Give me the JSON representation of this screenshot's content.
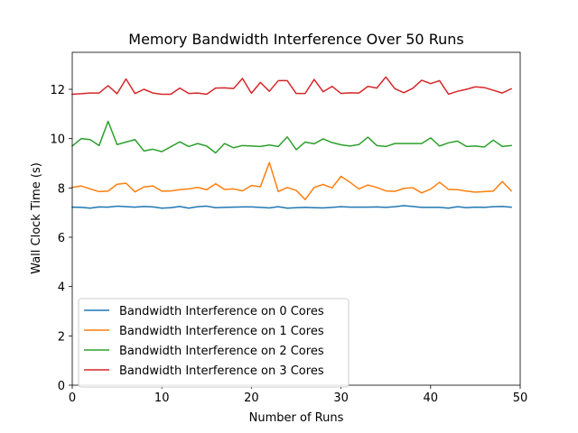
{
  "chart_data": {
    "type": "line",
    "title": "Memory Bandwidth Interference Over 50 Runs",
    "xlabel": "Number of Runs",
    "ylabel": "Wall Clock Time (s)",
    "xlim": [
      0,
      50
    ],
    "ylim": [
      0,
      13.5
    ],
    "xticks": [
      0,
      10,
      20,
      30,
      40,
      50
    ],
    "yticks": [
      0,
      2,
      4,
      6,
      8,
      10,
      12
    ],
    "grid": false,
    "legend_position": "lower-left",
    "x": [
      0,
      1,
      2,
      3,
      4,
      5,
      6,
      7,
      8,
      9,
      10,
      11,
      12,
      13,
      14,
      15,
      16,
      17,
      18,
      19,
      20,
      21,
      22,
      23,
      24,
      25,
      26,
      27,
      28,
      29,
      30,
      31,
      32,
      33,
      34,
      35,
      36,
      37,
      38,
      39,
      40,
      41,
      42,
      43,
      44,
      45,
      46,
      47,
      48,
      49
    ],
    "series": [
      {
        "name": "Bandwidth Interference on 0 Cores",
        "color": "#1f77b4",
        "values": [
          7.22,
          7.21,
          7.18,
          7.23,
          7.22,
          7.26,
          7.24,
          7.22,
          7.25,
          7.23,
          7.18,
          7.2,
          7.25,
          7.18,
          7.24,
          7.26,
          7.2,
          7.21,
          7.22,
          7.23,
          7.23,
          7.21,
          7.19,
          7.24,
          7.18,
          7.2,
          7.21,
          7.2,
          7.19,
          7.21,
          7.24,
          7.22,
          7.22,
          7.22,
          7.23,
          7.21,
          7.24,
          7.28,
          7.25,
          7.21,
          7.21,
          7.21,
          7.18,
          7.24,
          7.2,
          7.22,
          7.21,
          7.24,
          7.25,
          7.22
        ]
      },
      {
        "name": "Bandwidth Interference on 1 Cores",
        "color": "#ff7f0e",
        "values": [
          8.02,
          8.08,
          7.96,
          7.85,
          7.87,
          8.15,
          8.19,
          7.84,
          8.04,
          8.08,
          7.87,
          7.88,
          7.93,
          7.96,
          8.02,
          7.93,
          8.17,
          7.94,
          7.96,
          7.88,
          8.1,
          8.05,
          9.03,
          7.85,
          8.02,
          7.9,
          7.53,
          8.02,
          8.14,
          8.0,
          8.47,
          8.23,
          7.96,
          8.12,
          8.02,
          7.88,
          7.86,
          7.98,
          8.01,
          7.8,
          7.95,
          8.23,
          7.94,
          7.93,
          7.87,
          7.83,
          7.85,
          7.87,
          8.26,
          7.88
        ]
      },
      {
        "name": "Bandwidth Interference on 2 Cores",
        "color": "#2ca02c",
        "values": [
          9.7,
          10.0,
          9.96,
          9.72,
          10.7,
          9.76,
          9.86,
          9.96,
          9.5,
          9.57,
          9.47,
          9.67,
          9.87,
          9.68,
          9.8,
          9.7,
          9.42,
          9.8,
          9.63,
          9.72,
          9.7,
          9.68,
          9.74,
          9.68,
          10.07,
          9.55,
          9.86,
          9.79,
          9.99,
          9.84,
          9.75,
          9.7,
          9.76,
          10.06,
          9.72,
          9.68,
          9.8,
          9.8,
          9.8,
          9.8,
          10.03,
          9.7,
          9.83,
          9.9,
          9.68,
          9.7,
          9.66,
          9.94,
          9.68,
          9.72
        ]
      },
      {
        "name": "Bandwidth Interference on 3 Cores",
        "color": "#d62728",
        "values": [
          11.8,
          11.82,
          11.85,
          11.85,
          12.15,
          11.82,
          12.42,
          11.83,
          12.0,
          11.85,
          11.8,
          11.8,
          12.05,
          11.83,
          11.85,
          11.8,
          12.05,
          12.06,
          12.03,
          12.44,
          11.84,
          12.28,
          11.92,
          12.35,
          12.35,
          11.83,
          11.83,
          12.4,
          11.9,
          12.12,
          11.83,
          11.86,
          11.85,
          12.12,
          12.05,
          12.5,
          12.03,
          11.86,
          12.04,
          12.37,
          12.23,
          12.35,
          11.8,
          11.92,
          12.0,
          12.1,
          12.07,
          11.96,
          11.85,
          12.02
        ]
      }
    ]
  }
}
